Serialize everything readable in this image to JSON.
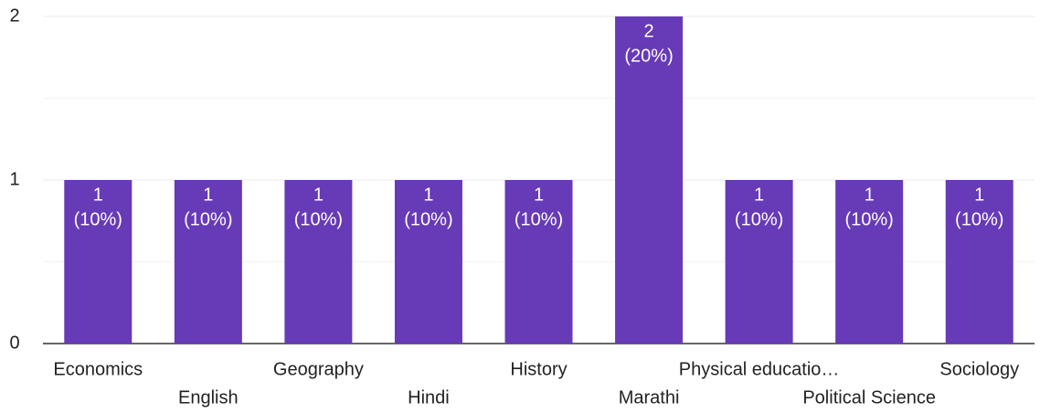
{
  "chart_data": {
    "type": "bar",
    "categories": [
      "Economics",
      "English",
      "Geography",
      "Hindi",
      "History",
      "Marathi",
      "Physical educatio…",
      "Political Science",
      "Sociology"
    ],
    "values": [
      1,
      1,
      1,
      1,
      1,
      2,
      1,
      1,
      1
    ],
    "value_labels": [
      [
        "1",
        "(10%)"
      ],
      [
        "1",
        "(10%)"
      ],
      [
        "1",
        "(10%)"
      ],
      [
        "1",
        "(10%)"
      ],
      [
        "1",
        "(10%)"
      ],
      [
        "2",
        "(20%)"
      ],
      [
        "1",
        "(10%)"
      ],
      [
        "1",
        "(10%)"
      ],
      [
        "1",
        "(10%)"
      ]
    ],
    "color": "#673ab7",
    "ylim": [
      0,
      2
    ],
    "yticks": [
      0,
      1,
      2
    ],
    "minor_gridlines": [
      0.5,
      1.5
    ],
    "grid": true
  }
}
